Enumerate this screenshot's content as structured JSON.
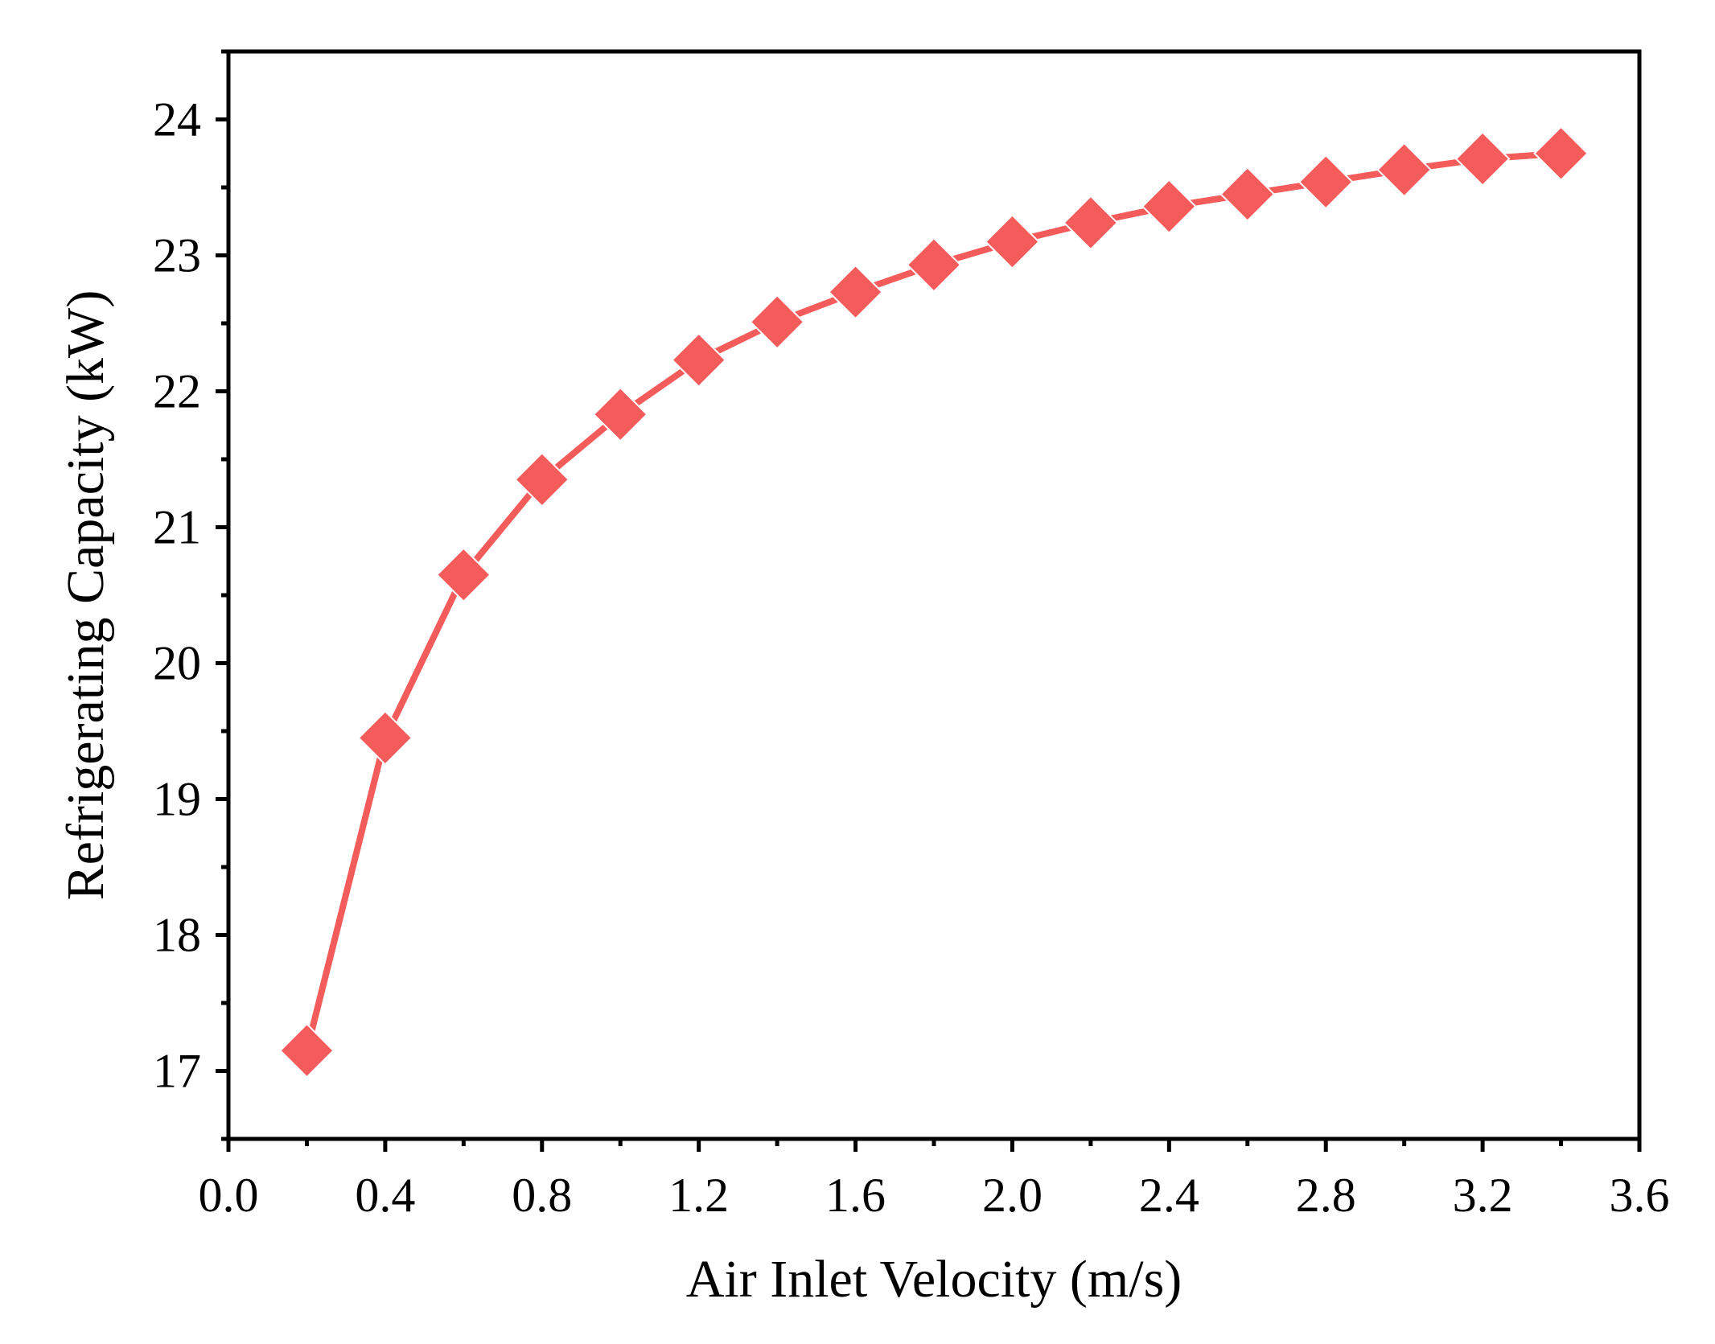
{
  "chart_data": {
    "type": "line",
    "title": "",
    "xlabel": "Air Inlet Velocity (m/s)",
    "ylabel": "Refrigerating Capacity (kW)",
    "xlim": [
      0.0,
      3.6
    ],
    "ylim": [
      16.5,
      24.5
    ],
    "x_ticks": [
      "0.0",
      "0.4",
      "0.8",
      "1.2",
      "1.6",
      "2.0",
      "2.4",
      "2.8",
      "3.2",
      "3.6"
    ],
    "y_ticks": [
      "17",
      "18",
      "19",
      "20",
      "21",
      "22",
      "23",
      "24"
    ],
    "grid": false,
    "legend": "none",
    "series": [
      {
        "name": "Refrigerating Capacity",
        "color": "#f45b5b",
        "marker": "diamond",
        "x": [
          0.2,
          0.4,
          0.6,
          0.8,
          1.0,
          1.2,
          1.4,
          1.6,
          1.8,
          2.0,
          2.2,
          2.4,
          2.6,
          2.8,
          3.0,
          3.2,
          3.4
        ],
        "y": [
          17.15,
          19.45,
          20.65,
          21.35,
          21.83,
          22.23,
          22.51,
          22.73,
          22.93,
          23.1,
          23.24,
          23.36,
          23.45,
          23.54,
          23.63,
          23.71,
          23.75
        ]
      }
    ]
  }
}
